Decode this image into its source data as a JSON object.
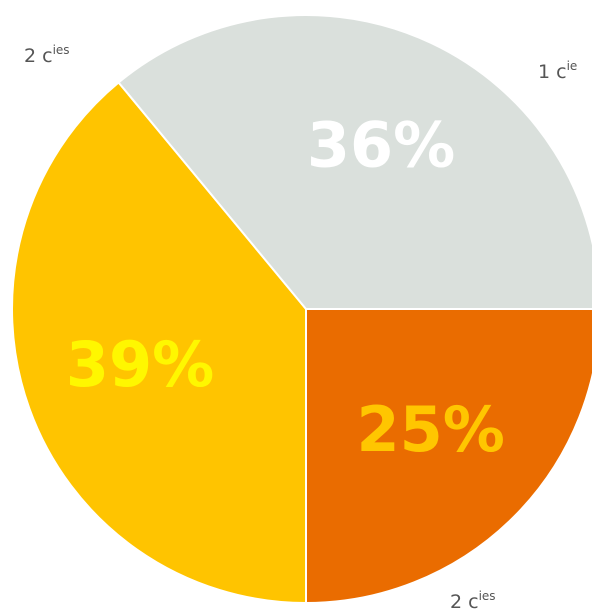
{
  "chart_data": {
    "type": "pie",
    "start_angle_deg": 0,
    "direction": "clockwise",
    "slices": [
      {
        "label_main": "1 c",
        "label_sup": "ie",
        "value": 25,
        "value_label": "25%",
        "color": "#EA6C00",
        "value_label_color": "#FFC600"
      },
      {
        "label_main": "2 c",
        "label_sup": "ies",
        "value": 39,
        "value_label": "39%",
        "color": "#FFC400",
        "value_label_color": "#FFF700"
      },
      {
        "label_main": "2 c",
        "label_sup": "ies",
        "value": 36,
        "value_label": "36%",
        "color": "#DAE0DC",
        "value_label_color": "#FFFFFF"
      }
    ]
  }
}
